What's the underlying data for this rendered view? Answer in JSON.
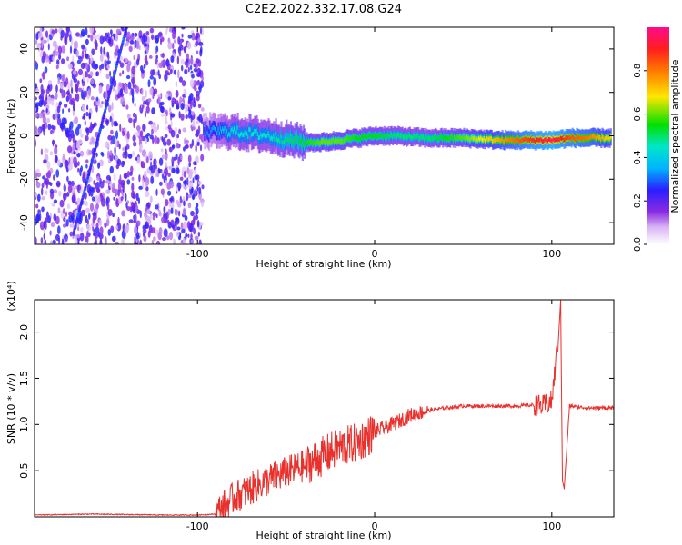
{
  "title": "C2E2.2022.332.17.08.G24",
  "colors": {
    "snr_line": "#e8302c",
    "frame": "#000000",
    "scatter": "#8a2be2"
  },
  "chart_data": [
    {
      "type": "heatmap",
      "name": "spectrogram",
      "xlabel": "Height of straight line (km)",
      "ylabel": "Frequency (Hz)",
      "xlim": [
        -192,
        135
      ],
      "ylim": [
        -50,
        50
      ],
      "x_ticks": [
        -100,
        0,
        100
      ],
      "y_ticks": [
        -40,
        -20,
        0,
        20,
        40
      ],
      "colorbar": {
        "label": "Normalized spectral amplitude",
        "range": [
          0,
          1
        ],
        "ticks": [
          0.0,
          0.2,
          0.4,
          0.6,
          0.8
        ],
        "colormap": "rainbow (white-purple-blue-cyan-green-yellow-orange-red-magenta)"
      },
      "ridge": {
        "x": [
          -97,
          -80,
          -60,
          -40,
          -30,
          -20,
          -10,
          0,
          10,
          30,
          50,
          70,
          90,
          100,
          110,
          120,
          133
        ],
        "y": [
          2,
          2,
          0,
          -3,
          -3,
          -2,
          -1,
          0,
          0,
          -1,
          -1,
          -2,
          -2,
          -2,
          -1,
          -1,
          -1
        ],
        "peak_amplitude": [
          0.3,
          0.45,
          0.45,
          0.55,
          0.6,
          0.6,
          0.55,
          0.55,
          0.5,
          0.5,
          0.6,
          0.75,
          0.9,
          0.95,
          0.85,
          0.8,
          0.7
        ]
      },
      "noise_region_x": [
        -192,
        -97
      ]
    },
    {
      "type": "line",
      "name": "snr",
      "xlabel": "Height of straight line (km)",
      "ylabel": "SNR (10 * v/v)",
      "y_multiplier": "(x10⁴)",
      "xlim": [
        -192,
        135
      ],
      "ylim": [
        0.0,
        2.35
      ],
      "x_ticks": [
        -100,
        0,
        100
      ],
      "y_ticks": [
        0.5,
        1.0,
        1.5,
        2.0
      ],
      "y_tick_labels": [
        "0.5",
        "1.0",
        "1.5",
        "2.0"
      ],
      "series": [
        {
          "x": [
            -192,
            -160,
            -120,
            -100,
            -90,
            -80,
            -70,
            -60,
            -50,
            -40,
            -30,
            -20,
            -10,
            0,
            10,
            20,
            30,
            40,
            50,
            60,
            70,
            80,
            90,
            95,
            100,
            104,
            105,
            106,
            107,
            110,
            120,
            135
          ],
          "y": [
            0.02,
            0.03,
            0.02,
            0.02,
            0.03,
            0.2,
            0.3,
            0.4,
            0.48,
            0.55,
            0.65,
            0.75,
            0.8,
            0.92,
            1.0,
            1.1,
            1.15,
            1.18,
            1.2,
            1.2,
            1.2,
            1.2,
            1.21,
            1.2,
            1.25,
            2.0,
            2.35,
            0.4,
            0.3,
            1.2,
            1.18,
            1.18
          ]
        }
      ]
    }
  ]
}
